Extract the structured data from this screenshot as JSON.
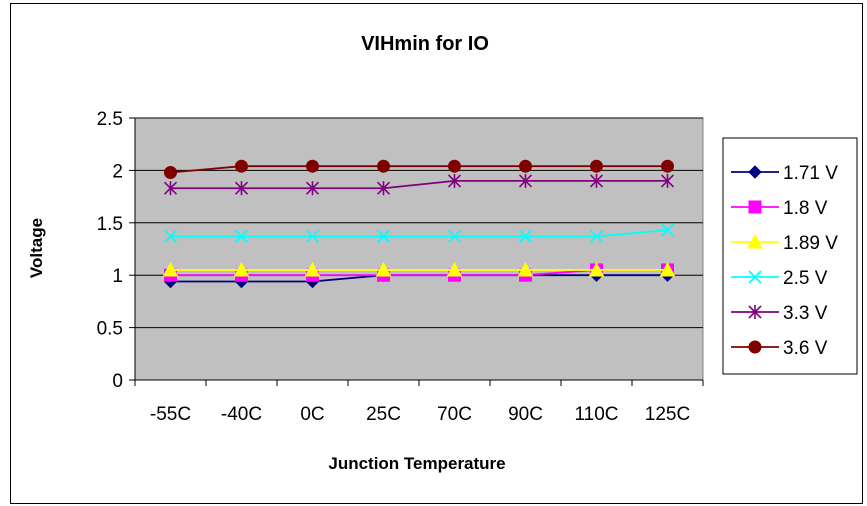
{
  "chart_data": {
    "type": "line",
    "title": "VIHmin for IO",
    "xlabel": "Junction Temperature",
    "ylabel": "Voltage",
    "categories": [
      "-55C",
      "-40C",
      "0C",
      "25C",
      "70C",
      "90C",
      "110C",
      "125C"
    ],
    "ylim": [
      0,
      2.5
    ],
    "yticks": [
      "0",
      "0.5",
      "1",
      "1.5",
      "2",
      "2.5"
    ],
    "grid": true,
    "legend_position": "right",
    "plot_background": "#c0c0c0",
    "series": [
      {
        "name": "1.71 V",
        "color": "#000080",
        "marker": "diamond",
        "values": [
          0.94,
          0.94,
          0.94,
          1.0,
          1.0,
          1.0,
          1.0,
          1.0
        ]
      },
      {
        "name": "1.8 V",
        "color": "#ff00ff",
        "marker": "square",
        "values": [
          1.0,
          1.0,
          1.0,
          1.0,
          1.0,
          1.0,
          1.05,
          1.05
        ]
      },
      {
        "name": "1.89 V",
        "color": "#ffff00",
        "marker": "triangle",
        "values": [
          1.05,
          1.05,
          1.05,
          1.05,
          1.05,
          1.05,
          1.05,
          1.05
        ]
      },
      {
        "name": "2.5 V",
        "color": "#00ffff",
        "marker": "x",
        "values": [
          1.37,
          1.37,
          1.37,
          1.37,
          1.37,
          1.37,
          1.37,
          1.43
        ]
      },
      {
        "name": "3.3 V",
        "color": "#800080",
        "marker": "star",
        "values": [
          1.83,
          1.83,
          1.83,
          1.83,
          1.9,
          1.9,
          1.9,
          1.9
        ]
      },
      {
        "name": "3.6 V",
        "color": "#800000",
        "marker": "circle",
        "values": [
          1.98,
          2.04,
          2.04,
          2.04,
          2.04,
          2.04,
          2.04,
          2.04
        ]
      }
    ]
  }
}
